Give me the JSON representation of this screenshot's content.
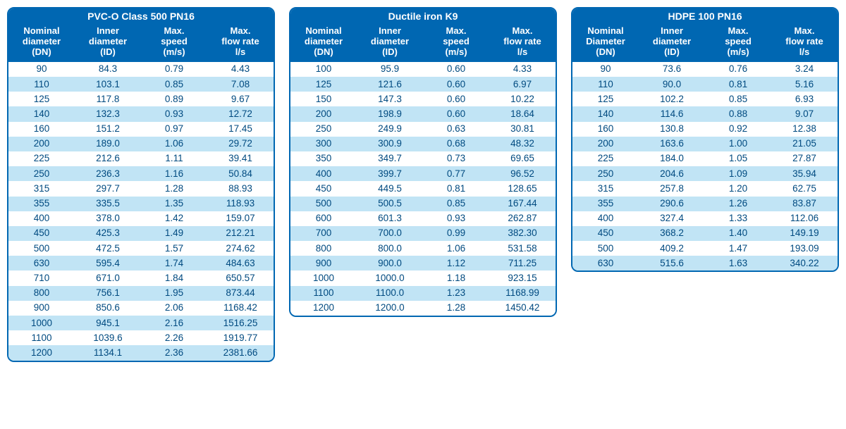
{
  "colors": {
    "header_bg": "#0067b2",
    "border": "#0067b2",
    "header_text": "#ffffff",
    "row_alt": "#c1e4f5",
    "row_base": "#ffffff",
    "cell_text": "#004a80"
  },
  "font": {
    "header_pt": 13,
    "cell_pt": 13.5,
    "title_pt": 14
  },
  "columns": [
    {
      "l1": "Nominal",
      "l2": "diameter",
      "l3": "(DN)"
    },
    {
      "l1": "Inner",
      "l2": "diameter",
      "l3": "(ID)"
    },
    {
      "l1": "Max.",
      "l2": "speed",
      "l3": "(m/s)"
    },
    {
      "l1": "Max.",
      "l2": "flow rate",
      "l3": "l/s"
    }
  ],
  "columns_hdpe_dn": {
    "l1": "Nominal",
    "l2": "Diameter",
    "l3": "(DN)"
  },
  "tables": [
    {
      "title": "PVC-O Class 500 PN16",
      "rows": [
        [
          "90",
          "84.3",
          "0.79",
          "4.43"
        ],
        [
          "110",
          "103.1",
          "0.85",
          "7.08"
        ],
        [
          "125",
          "117.8",
          "0.89",
          "9.67"
        ],
        [
          "140",
          "132.3",
          "0.93",
          "12.72"
        ],
        [
          "160",
          "151.2",
          "0.97",
          "17.45"
        ],
        [
          "200",
          "189.0",
          "1.06",
          "29.72"
        ],
        [
          "225",
          "212.6",
          "1.11",
          "39.41"
        ],
        [
          "250",
          "236.3",
          "1.16",
          "50.84"
        ],
        [
          "315",
          "297.7",
          "1.28",
          "88.93"
        ],
        [
          "355",
          "335.5",
          "1.35",
          "118.93"
        ],
        [
          "400",
          "378.0",
          "1.42",
          "159.07"
        ],
        [
          "450",
          "425.3",
          "1.49",
          "212.21"
        ],
        [
          "500",
          "472.5",
          "1.57",
          "274.62"
        ],
        [
          "630",
          "595.4",
          "1.74",
          "484.63"
        ],
        [
          "710",
          "671.0",
          "1.84",
          "650.57"
        ],
        [
          "800",
          "756.1",
          "1.95",
          "873.44"
        ],
        [
          "900",
          "850.6",
          "2.06",
          "1168.42"
        ],
        [
          "1000",
          "945.1",
          "2.16",
          "1516.25"
        ],
        [
          "1100",
          "1039.6",
          "2.26",
          "1919.77"
        ],
        [
          "1200",
          "1134.1",
          "2.36",
          "2381.66"
        ]
      ]
    },
    {
      "title": "Ductile iron K9",
      "rows": [
        [
          "100",
          "95.9",
          "0.60",
          "4.33"
        ],
        [
          "125",
          "121.6",
          "0.60",
          "6.97"
        ],
        [
          "150",
          "147.3",
          "0.60",
          "10.22"
        ],
        [
          "200",
          "198.9",
          "0.60",
          "18.64"
        ],
        [
          "250",
          "249.9",
          "0.63",
          "30.81"
        ],
        [
          "300",
          "300.9",
          "0.68",
          "48.32"
        ],
        [
          "350",
          "349.7",
          "0.73",
          "69.65"
        ],
        [
          "400",
          "399.7",
          "0.77",
          "96.52"
        ],
        [
          "450",
          "449.5",
          "0.81",
          "128.65"
        ],
        [
          "500",
          "500.5",
          "0.85",
          "167.44"
        ],
        [
          "600",
          "601.3",
          "0.93",
          "262.87"
        ],
        [
          "700",
          "700.0",
          "0.99",
          "382.30"
        ],
        [
          "800",
          "800.0",
          "1.06",
          "531.58"
        ],
        [
          "900",
          "900.0",
          "1.12",
          "711.25"
        ],
        [
          "1000",
          "1000.0",
          "1.18",
          "923.15"
        ],
        [
          "1100",
          "1100.0",
          "1.23",
          "1168.99"
        ],
        [
          "1200",
          "1200.0",
          "1.28",
          "1450.42"
        ]
      ]
    },
    {
      "title": "HDPE 100 PN16",
      "rows": [
        [
          "90",
          "73.6",
          "0.76",
          "3.24"
        ],
        [
          "110",
          "90.0",
          "0.81",
          "5.16"
        ],
        [
          "125",
          "102.2",
          "0.85",
          "6.93"
        ],
        [
          "140",
          "114.6",
          "0.88",
          "9.07"
        ],
        [
          "160",
          "130.8",
          "0.92",
          "12.38"
        ],
        [
          "200",
          "163.6",
          "1.00",
          "21.05"
        ],
        [
          "225",
          "184.0",
          "1.05",
          "27.87"
        ],
        [
          "250",
          "204.6",
          "1.09",
          "35.94"
        ],
        [
          "315",
          "257.8",
          "1.20",
          "62.75"
        ],
        [
          "355",
          "290.6",
          "1.26",
          "83.87"
        ],
        [
          "400",
          "327.4",
          "1.33",
          "112.06"
        ],
        [
          "450",
          "368.2",
          "1.40",
          "149.19"
        ],
        [
          "500",
          "409.2",
          "1.47",
          "193.09"
        ],
        [
          "630",
          "515.6",
          "1.63",
          "340.22"
        ]
      ]
    }
  ]
}
